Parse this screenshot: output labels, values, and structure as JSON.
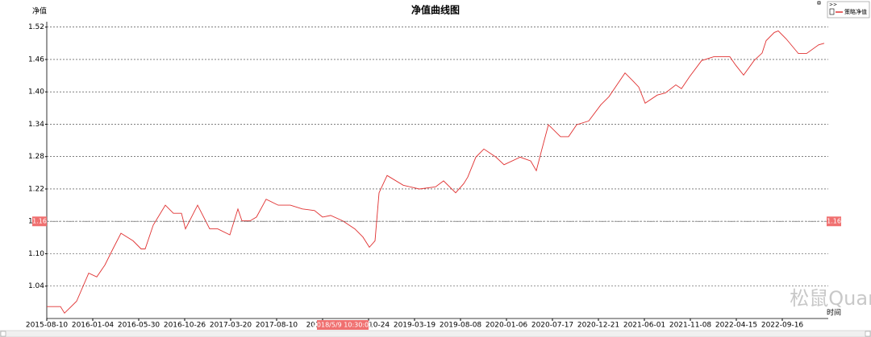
{
  "chart_data": {
    "type": "line",
    "title": "净值曲线图",
    "y_label": "净值",
    "x_label": "时间",
    "xlim": [
      0,
      969
    ],
    "ylim": [
      0.98,
      1.53
    ],
    "xticks": [
      {
        "value": 0,
        "label": "2015-08-10"
      },
      {
        "value": 57,
        "label": "2016-01-04"
      },
      {
        "value": 114,
        "label": "2016-05-30"
      },
      {
        "value": 171,
        "label": "2016-10-26"
      },
      {
        "value": 228,
        "label": "2017-03-20"
      },
      {
        "value": 285,
        "label": "2017-08-10"
      },
      {
        "value": 342,
        "label": "2018-01-"
      },
      {
        "value": 399,
        "label": "2018-10-24"
      },
      {
        "value": 456,
        "label": "2019-03-19"
      },
      {
        "value": 513,
        "label": "2019-08-08"
      },
      {
        "value": 570,
        "label": "2020-01-06"
      },
      {
        "value": 627,
        "label": "2020-07-17"
      },
      {
        "value": 684,
        "label": "2020-12-21"
      },
      {
        "value": 741,
        "label": "2021-06-01"
      },
      {
        "value": 798,
        "label": "2021-11-08"
      },
      {
        "value": 855,
        "label": "2022-04-15"
      },
      {
        "value": 912,
        "label": "2022-09-16"
      }
    ],
    "yticks": [
      1.04,
      {
        "value": 1.1,
        "label": "1.10"
      },
      1.16,
      1.22,
      1.28,
      1.34,
      {
        "value": 1.4,
        "label": "1.40"
      },
      1.46,
      1.52
    ],
    "grid": true,
    "series": [
      {
        "name": "策略净值",
        "color": "#e03030",
        "x": [
          0,
          17,
          22,
          37,
          52,
          62,
          72,
          82,
          92,
          107,
          117,
          122,
          132,
          147,
          157,
          167,
          172,
          187,
          202,
          212,
          227,
          237,
          242,
          252,
          260,
          272,
          287,
          302,
          317,
          332,
          342,
          352,
          367,
          382,
          392,
          400,
          407,
          412,
          422,
          442,
          462,
          482,
          492,
          507,
          517,
          522,
          532,
          542,
          557,
          567,
          587,
          600,
          607,
          614,
          622,
          637,
          647,
          657,
          672,
          687,
          697,
          707,
          717,
          727,
          734,
          742,
          757,
          767,
          780,
          787,
          797,
          812,
          827,
          837,
          847,
          854,
          864,
          877,
          887,
          892,
          902,
          907,
          917,
          932,
          942,
          957,
          964
        ],
        "values": [
          1.002,
          1.002,
          0.99,
          1.012,
          1.064,
          1.057,
          1.079,
          1.109,
          1.138,
          1.124,
          1.109,
          1.109,
          1.153,
          1.19,
          1.175,
          1.175,
          1.146,
          1.19,
          1.146,
          1.146,
          1.135,
          1.183,
          1.161,
          1.161,
          1.168,
          1.201,
          1.19,
          1.19,
          1.183,
          1.18,
          1.168,
          1.171,
          1.161,
          1.146,
          1.131,
          1.112,
          1.124,
          1.213,
          1.245,
          1.227,
          1.22,
          1.224,
          1.235,
          1.213,
          1.23,
          1.242,
          1.279,
          1.294,
          1.279,
          1.265,
          1.279,
          1.272,
          1.254,
          1.294,
          1.339,
          1.317,
          1.317,
          1.339,
          1.346,
          1.376,
          1.391,
          1.413,
          1.435,
          1.42,
          1.409,
          1.379,
          1.394,
          1.398,
          1.413,
          1.406,
          1.428,
          1.458,
          1.465,
          1.465,
          1.465,
          1.45,
          1.431,
          1.458,
          1.472,
          1.495,
          1.51,
          1.513,
          1.498,
          1.471,
          1.471,
          1.487,
          1.49
        ]
      }
    ],
    "crosshair": {
      "y": 1.16,
      "x": 367,
      "x_label": "2018/5/9 10:30:00"
    },
    "legend_toggle": ">>",
    "watermark": "松鼠Quant"
  }
}
